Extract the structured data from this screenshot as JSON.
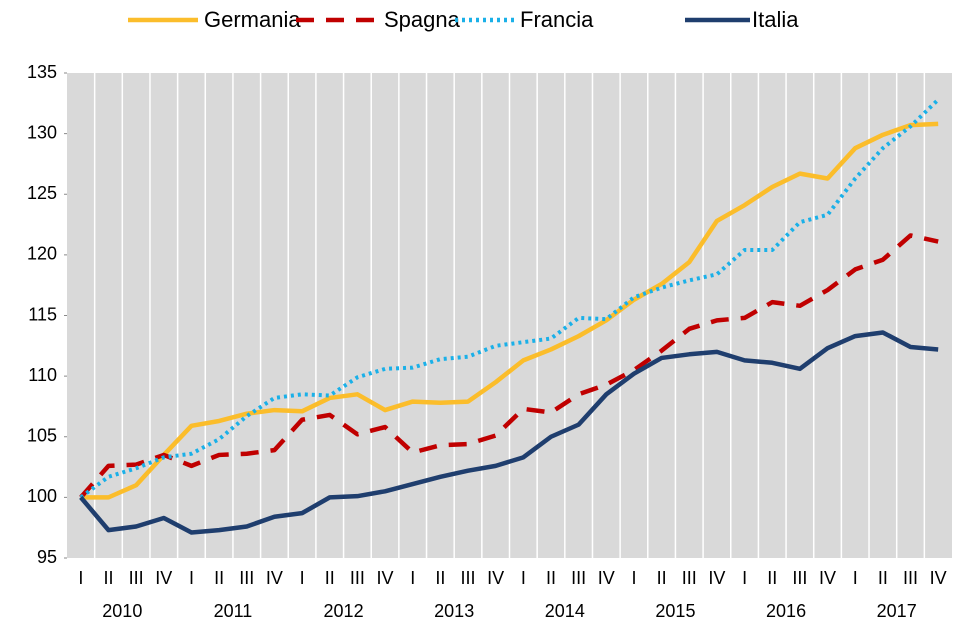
{
  "chart_data": {
    "type": "line",
    "categories": [
      "I",
      "II",
      "III",
      "IV",
      "I",
      "II",
      "III",
      "IV",
      "I",
      "II",
      "III",
      "IV",
      "I",
      "II",
      "III",
      "IV",
      "I",
      "II",
      "III",
      "IV",
      "I",
      "II",
      "III",
      "IV",
      "I",
      "II",
      "III",
      "IV",
      "I",
      "II",
      "III",
      "IV"
    ],
    "years": [
      "2010",
      "2011",
      "2012",
      "2013",
      "2014",
      "2015",
      "2016",
      "2017"
    ],
    "ylim": [
      95,
      135
    ],
    "yticks": [
      95,
      100,
      105,
      110,
      115,
      120,
      125,
      130,
      135
    ],
    "series": [
      {
        "name": "Germania",
        "color": "#fbbd2b",
        "style": "solid",
        "values": [
          100,
          100,
          101,
          103.5,
          105.9,
          106.3,
          106.9,
          107.2,
          107.1,
          108.2,
          108.5,
          107.2,
          107.9,
          107.8,
          107.9,
          109.5,
          111.3,
          112.2,
          113.3,
          114.6,
          116.3,
          117.6,
          119.4,
          122.8,
          124.1,
          125.6,
          126.7,
          126.3,
          128.8,
          129.9,
          130.7,
          130.8
        ]
      },
      {
        "name": "Spagna",
        "color": "#c00000",
        "style": "dashed",
        "values": [
          100,
          102.6,
          102.7,
          103.5,
          102.6,
          103.5,
          103.6,
          103.9,
          106.4,
          106.8,
          105.2,
          105.8,
          103.7,
          104.3,
          104.4,
          105.1,
          107.3,
          107,
          108.5,
          109.3,
          110.5,
          112.1,
          113.9,
          114.6,
          114.8,
          116.1,
          115.8,
          117.1,
          118.8,
          119.6,
          121.6,
          121.1
        ]
      },
      {
        "name": "Francia",
        "color": "#1ab0e8",
        "style": "dotted",
        "values": [
          100,
          101.7,
          102.4,
          103.3,
          103.6,
          104.8,
          106.7,
          108.2,
          108.5,
          108.4,
          109.9,
          110.6,
          110.7,
          111.4,
          111.6,
          112.5,
          112.8,
          113.1,
          114.8,
          114.7,
          116.5,
          117.3,
          117.9,
          118.4,
          120.4,
          120.4,
          122.7,
          123.3,
          126.3,
          128.8,
          130.6,
          132.8
        ]
      },
      {
        "name": "Italia",
        "color": "#1f3e6e",
        "style": "solid",
        "values": [
          100,
          97.3,
          97.6,
          98.3,
          97.1,
          97.3,
          97.6,
          98.4,
          98.7,
          100,
          100.1,
          100.5,
          101.1,
          101.7,
          102.2,
          102.6,
          103.3,
          105,
          106,
          108.5,
          110.2,
          111.5,
          111.8,
          112,
          111.3,
          111.1,
          110.6,
          112.3,
          113.3,
          113.6,
          112.4,
          112.2
        ]
      }
    ]
  }
}
